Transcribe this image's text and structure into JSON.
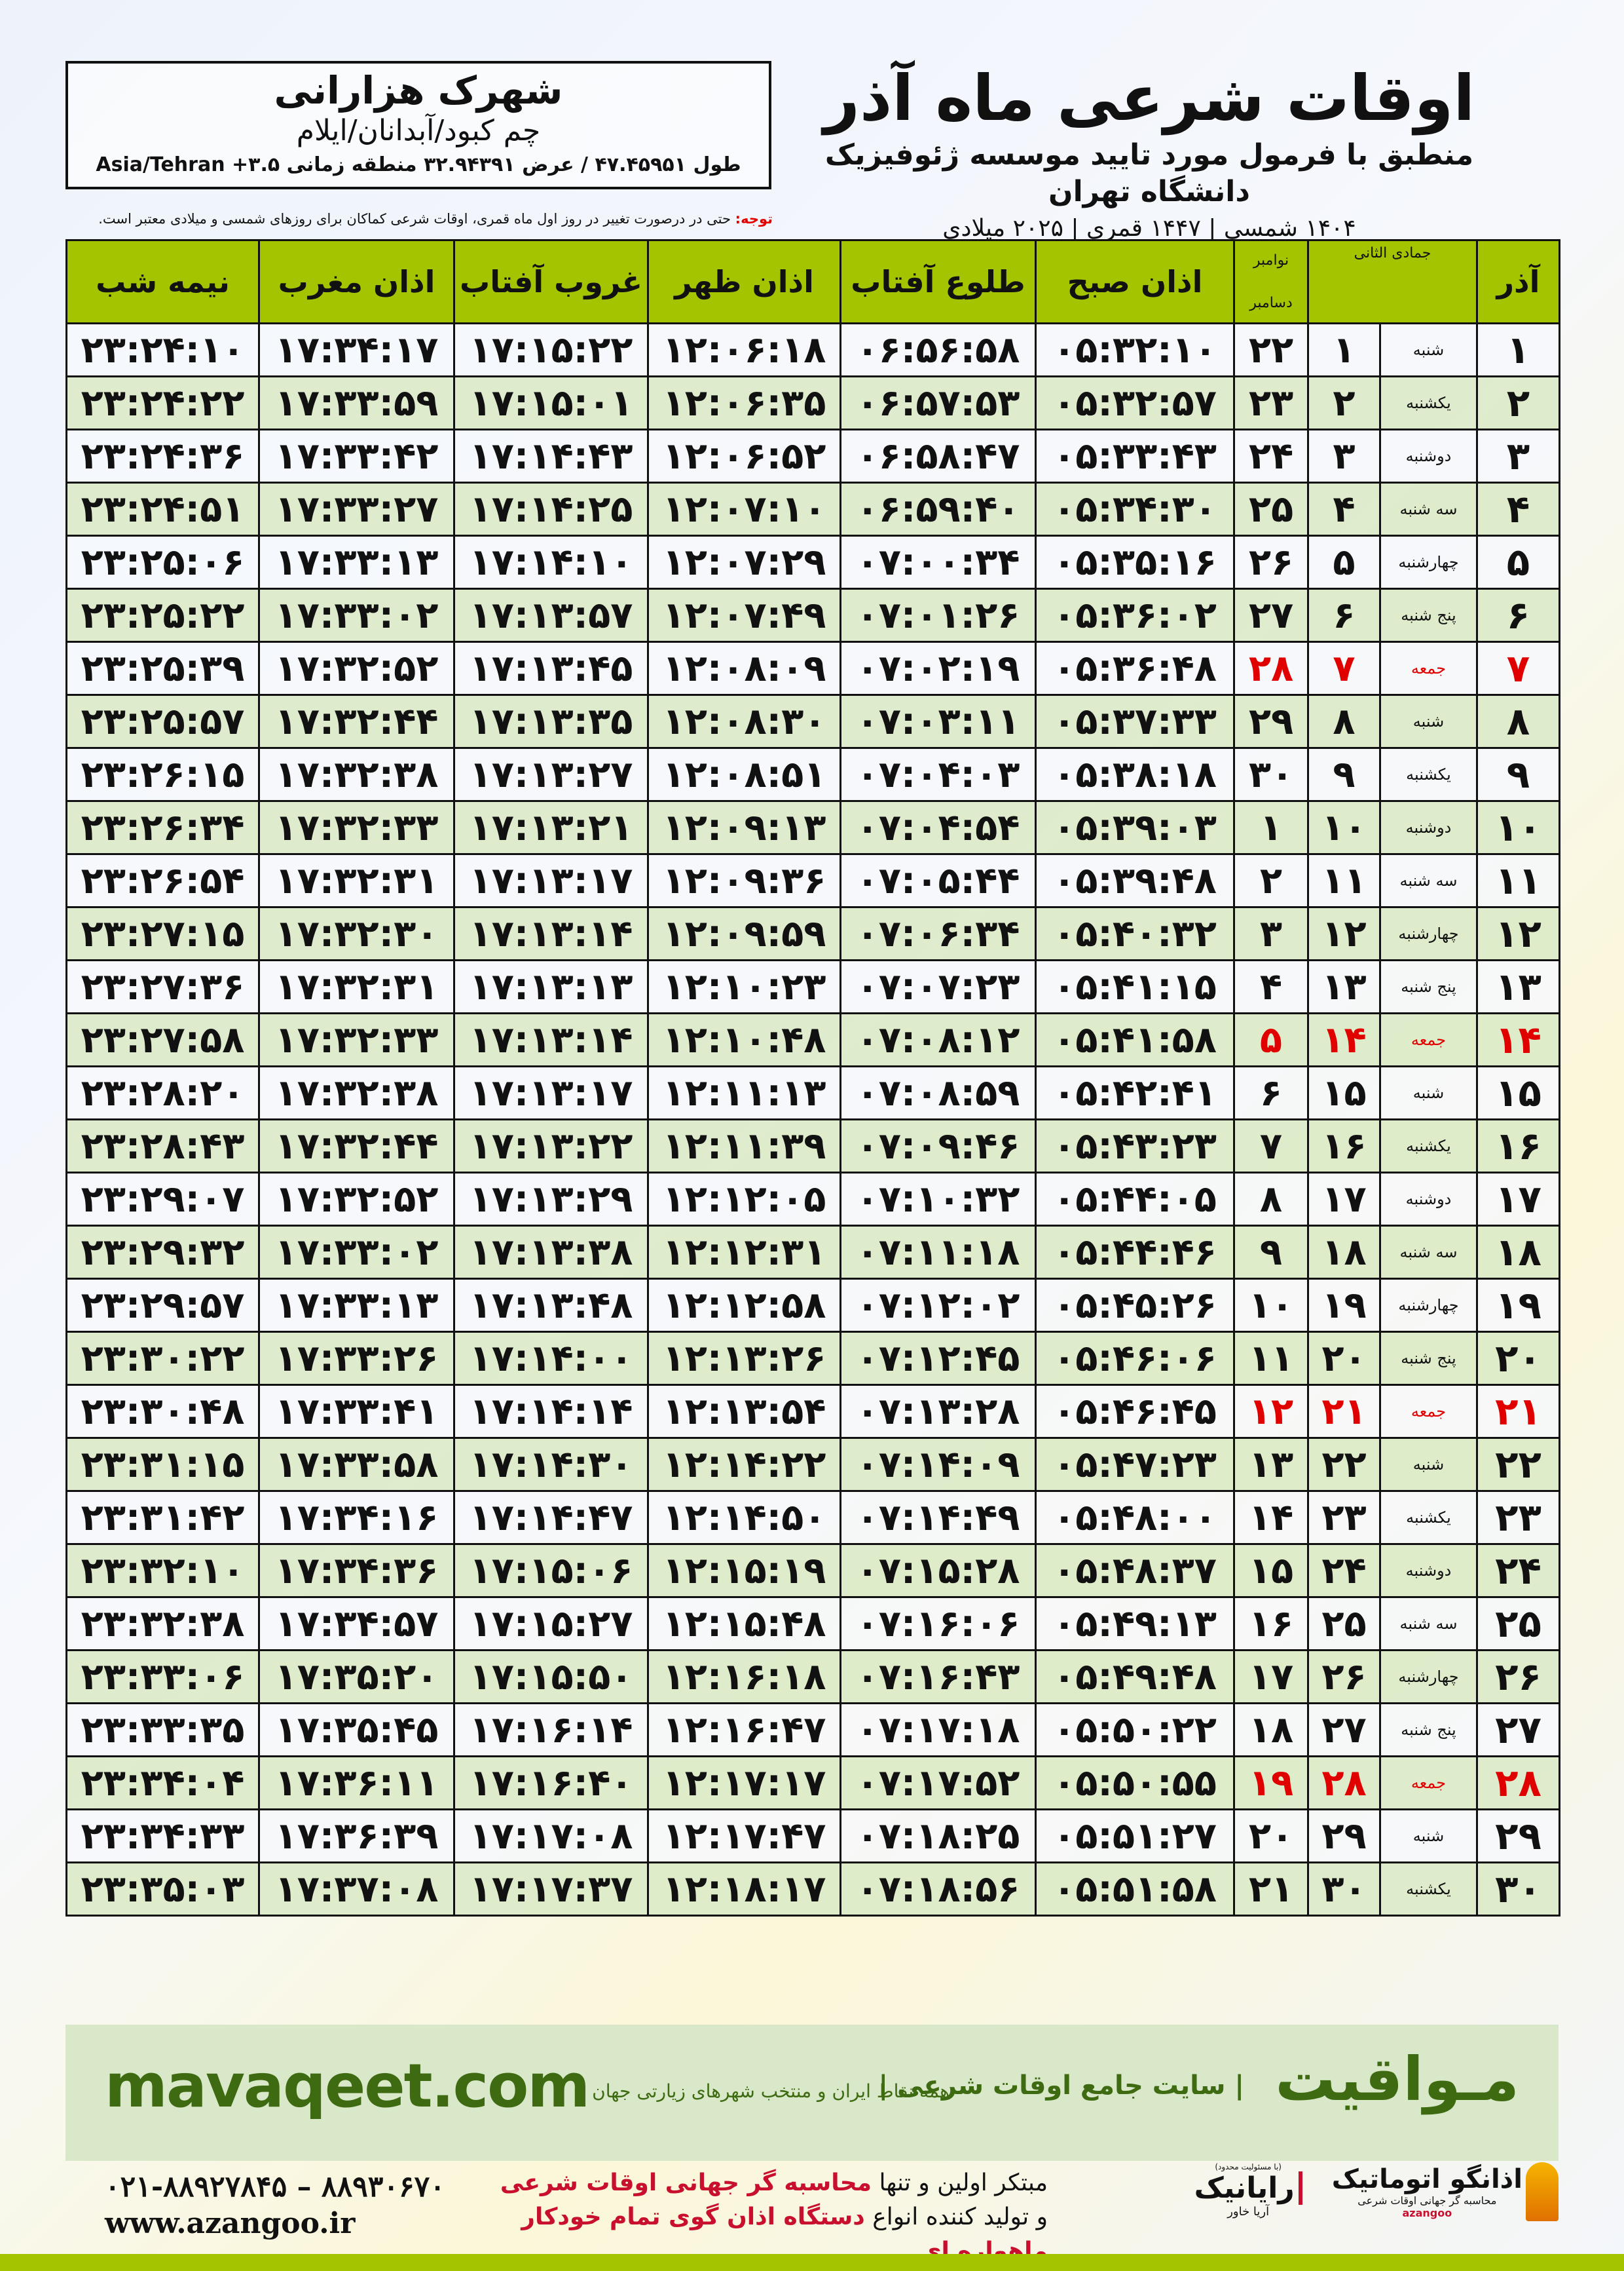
{
  "location": {
    "city": "شهرک هزارانی",
    "region": "چم کبود/آبدانان/ایلام",
    "coords": "طول ۴۷.۴۵۹۵۱ / عرض ۳۲.۹۴۳۹۱ منطقه زمانی ۳.۵+ Asia/Tehran"
  },
  "title": {
    "main": "اوقات شرعی ماه آذر",
    "subtitle": "منطبق با فرمول مورد تایید موسسه ژئوفیزیک دانشگاه تهران",
    "years": "۱۴۰۴ شمسی | ۱۴۴۷ قمری | ۲۰۲۵ میلادی"
  },
  "note": {
    "label": "توجه:",
    "text": " حتی در درصورت تغییر در روز اول ماه قمری، اوقات شرعی کماکان برای روزهای شمسی و میلادی معتبر است."
  },
  "table": {
    "headers": {
      "azar": "آذر",
      "qamari": "جمادی الثانی",
      "miladi_top": "نوامبر",
      "miladi_bottom": "دسامبر",
      "sobh": "اذان صبح",
      "tolu": "طلوع آفتاب",
      "zohr": "اذان ظهر",
      "ghorub": "غروب آفتاب",
      "maghreb": "اذان مغرب",
      "nimeshab": "نیمه شب"
    },
    "colors": {
      "header": "#a5c400",
      "friday": "#e00000",
      "row_alt": "#dbeac8"
    },
    "rows": [
      [
        "۱",
        "شنبه",
        "۱",
        "۲۲",
        "۰۵:۳۲:۱۰",
        "۰۶:۵۶:۵۸",
        "۱۲:۰۶:۱۸",
        "۱۷:۱۵:۲۲",
        "۱۷:۳۴:۱۷",
        "۲۳:۲۴:۱۰"
      ],
      [
        "۲",
        "یکشنبه",
        "۲",
        "۲۳",
        "۰۵:۳۲:۵۷",
        "۰۶:۵۷:۵۳",
        "۱۲:۰۶:۳۵",
        "۱۷:۱۵:۰۱",
        "۱۷:۳۳:۵۹",
        "۲۳:۲۴:۲۲"
      ],
      [
        "۳",
        "دوشنبه",
        "۳",
        "۲۴",
        "۰۵:۳۳:۴۳",
        "۰۶:۵۸:۴۷",
        "۱۲:۰۶:۵۲",
        "۱۷:۱۴:۴۳",
        "۱۷:۳۳:۴۲",
        "۲۳:۲۴:۳۶"
      ],
      [
        "۴",
        "سه شنبه",
        "۴",
        "۲۵",
        "۰۵:۳۴:۳۰",
        "۰۶:۵۹:۴۰",
        "۱۲:۰۷:۱۰",
        "۱۷:۱۴:۲۵",
        "۱۷:۳۳:۲۷",
        "۲۳:۲۴:۵۱"
      ],
      [
        "۵",
        "چهارشنبه",
        "۵",
        "۲۶",
        "۰۵:۳۵:۱۶",
        "۰۷:۰۰:۳۴",
        "۱۲:۰۷:۲۹",
        "۱۷:۱۴:۱۰",
        "۱۷:۳۳:۱۳",
        "۲۳:۲۵:۰۶"
      ],
      [
        "۶",
        "پنج شنبه",
        "۶",
        "۲۷",
        "۰۵:۳۶:۰۲",
        "۰۷:۰۱:۲۶",
        "۱۲:۰۷:۴۹",
        "۱۷:۱۳:۵۷",
        "۱۷:۳۳:۰۲",
        "۲۳:۲۵:۲۲"
      ],
      [
        "۷",
        "جمعه",
        "۷",
        "۲۸",
        "۰۵:۳۶:۴۸",
        "۰۷:۰۲:۱۹",
        "۱۲:۰۸:۰۹",
        "۱۷:۱۳:۴۵",
        "۱۷:۳۲:۵۲",
        "۲۳:۲۵:۳۹"
      ],
      [
        "۸",
        "شنبه",
        "۸",
        "۲۹",
        "۰۵:۳۷:۳۳",
        "۰۷:۰۳:۱۱",
        "۱۲:۰۸:۳۰",
        "۱۷:۱۳:۳۵",
        "۱۷:۳۲:۴۴",
        "۲۳:۲۵:۵۷"
      ],
      [
        "۹",
        "یکشنبه",
        "۹",
        "۳۰",
        "۰۵:۳۸:۱۸",
        "۰۷:۰۴:۰۳",
        "۱۲:۰۸:۵۱",
        "۱۷:۱۳:۲۷",
        "۱۷:۳۲:۳۸",
        "۲۳:۲۶:۱۵"
      ],
      [
        "۱۰",
        "دوشنبه",
        "۱۰",
        "۱",
        "۰۵:۳۹:۰۳",
        "۰۷:۰۴:۵۴",
        "۱۲:۰۹:۱۳",
        "۱۷:۱۳:۲۱",
        "۱۷:۳۲:۳۳",
        "۲۳:۲۶:۳۴"
      ],
      [
        "۱۱",
        "سه شنبه",
        "۱۱",
        "۲",
        "۰۵:۳۹:۴۸",
        "۰۷:۰۵:۴۴",
        "۱۲:۰۹:۳۶",
        "۱۷:۱۳:۱۷",
        "۱۷:۳۲:۳۱",
        "۲۳:۲۶:۵۴"
      ],
      [
        "۱۲",
        "چهارشنبه",
        "۱۲",
        "۳",
        "۰۵:۴۰:۳۲",
        "۰۷:۰۶:۳۴",
        "۱۲:۰۹:۵۹",
        "۱۷:۱۳:۱۴",
        "۱۷:۳۲:۳۰",
        "۲۳:۲۷:۱۵"
      ],
      [
        "۱۳",
        "پنج شنبه",
        "۱۳",
        "۴",
        "۰۵:۴۱:۱۵",
        "۰۷:۰۷:۲۳",
        "۱۲:۱۰:۲۳",
        "۱۷:۱۳:۱۳",
        "۱۷:۳۲:۳۱",
        "۲۳:۲۷:۳۶"
      ],
      [
        "۱۴",
        "جمعه",
        "۱۴",
        "۵",
        "۰۵:۴۱:۵۸",
        "۰۷:۰۸:۱۲",
        "۱۲:۱۰:۴۸",
        "۱۷:۱۳:۱۴",
        "۱۷:۳۲:۳۳",
        "۲۳:۲۷:۵۸"
      ],
      [
        "۱۵",
        "شنبه",
        "۱۵",
        "۶",
        "۰۵:۴۲:۴۱",
        "۰۷:۰۸:۵۹",
        "۱۲:۱۱:۱۳",
        "۱۷:۱۳:۱۷",
        "۱۷:۳۲:۳۸",
        "۲۳:۲۸:۲۰"
      ],
      [
        "۱۶",
        "یکشنبه",
        "۱۶",
        "۷",
        "۰۵:۴۳:۲۳",
        "۰۷:۰۹:۴۶",
        "۱۲:۱۱:۳۹",
        "۱۷:۱۳:۲۲",
        "۱۷:۳۲:۴۴",
        "۲۳:۲۸:۴۳"
      ],
      [
        "۱۷",
        "دوشنبه",
        "۱۷",
        "۸",
        "۰۵:۴۴:۰۵",
        "۰۷:۱۰:۳۲",
        "۱۲:۱۲:۰۵",
        "۱۷:۱۳:۲۹",
        "۱۷:۳۲:۵۲",
        "۲۳:۲۹:۰۷"
      ],
      [
        "۱۸",
        "سه شنبه",
        "۱۸",
        "۹",
        "۰۵:۴۴:۴۶",
        "۰۷:۱۱:۱۸",
        "۱۲:۱۲:۳۱",
        "۱۷:۱۳:۳۸",
        "۱۷:۳۳:۰۲",
        "۲۳:۲۹:۳۲"
      ],
      [
        "۱۹",
        "چهارشنبه",
        "۱۹",
        "۱۰",
        "۰۵:۴۵:۲۶",
        "۰۷:۱۲:۰۲",
        "۱۲:۱۲:۵۸",
        "۱۷:۱۳:۴۸",
        "۱۷:۳۳:۱۳",
        "۲۳:۲۹:۵۷"
      ],
      [
        "۲۰",
        "پنج شنبه",
        "۲۰",
        "۱۱",
        "۰۵:۴۶:۰۶",
        "۰۷:۱۲:۴۵",
        "۱۲:۱۳:۲۶",
        "۱۷:۱۴:۰۰",
        "۱۷:۳۳:۲۶",
        "۲۳:۳۰:۲۲"
      ],
      [
        "۲۱",
        "جمعه",
        "۲۱",
        "۱۲",
        "۰۵:۴۶:۴۵",
        "۰۷:۱۳:۲۸",
        "۱۲:۱۳:۵۴",
        "۱۷:۱۴:۱۴",
        "۱۷:۳۳:۴۱",
        "۲۳:۳۰:۴۸"
      ],
      [
        "۲۲",
        "شنبه",
        "۲۲",
        "۱۳",
        "۰۵:۴۷:۲۳",
        "۰۷:۱۴:۰۹",
        "۱۲:۱۴:۲۲",
        "۱۷:۱۴:۳۰",
        "۱۷:۳۳:۵۸",
        "۲۳:۳۱:۱۵"
      ],
      [
        "۲۳",
        "یکشنبه",
        "۲۳",
        "۱۴",
        "۰۵:۴۸:۰۰",
        "۰۷:۱۴:۴۹",
        "۱۲:۱۴:۵۰",
        "۱۷:۱۴:۴۷",
        "۱۷:۳۴:۱۶",
        "۲۳:۳۱:۴۲"
      ],
      [
        "۲۴",
        "دوشنبه",
        "۲۴",
        "۱۵",
        "۰۵:۴۸:۳۷",
        "۰۷:۱۵:۲۸",
        "۱۲:۱۵:۱۹",
        "۱۷:۱۵:۰۶",
        "۱۷:۳۴:۳۶",
        "۲۳:۳۲:۱۰"
      ],
      [
        "۲۵",
        "سه شنبه",
        "۲۵",
        "۱۶",
        "۰۵:۴۹:۱۳",
        "۰۷:۱۶:۰۶",
        "۱۲:۱۵:۴۸",
        "۱۷:۱۵:۲۷",
        "۱۷:۳۴:۵۷",
        "۲۳:۳۲:۳۸"
      ],
      [
        "۲۶",
        "چهارشنبه",
        "۲۶",
        "۱۷",
        "۰۵:۴۹:۴۸",
        "۰۷:۱۶:۴۳",
        "۱۲:۱۶:۱۸",
        "۱۷:۱۵:۵۰",
        "۱۷:۳۵:۲۰",
        "۲۳:۳۳:۰۶"
      ],
      [
        "۲۷",
        "پنج شنبه",
        "۲۷",
        "۱۸",
        "۰۵:۵۰:۲۲",
        "۰۷:۱۷:۱۸",
        "۱۲:۱۶:۴۷",
        "۱۷:۱۶:۱۴",
        "۱۷:۳۵:۴۵",
        "۲۳:۳۳:۳۵"
      ],
      [
        "۲۸",
        "جمعه",
        "۲۸",
        "۱۹",
        "۰۵:۵۰:۵۵",
        "۰۷:۱۷:۵۲",
        "۱۲:۱۷:۱۷",
        "۱۷:۱۶:۴۰",
        "۱۷:۳۶:۱۱",
        "۲۳:۳۴:۰۴"
      ],
      [
        "۲۹",
        "شنبه",
        "۲۹",
        "۲۰",
        "۰۵:۵۱:۲۷",
        "۰۷:۱۸:۲۵",
        "۱۲:۱۷:۴۷",
        "۱۷:۱۷:۰۸",
        "۱۷:۳۶:۳۹",
        "۲۳:۳۴:۳۳"
      ],
      [
        "۳۰",
        "یکشنبه",
        "۳۰",
        "۲۱",
        "۰۵:۵۱:۵۸",
        "۰۷:۱۸:۵۶",
        "۱۲:۱۸:۱۷",
        "۱۷:۱۷:۳۷",
        "۱۷:۳۷:۰۸",
        "۲۳:۳۵:۰۳"
      ]
    ]
  },
  "footer": {
    "site": "mavaqeet.com",
    "brand": "مـواقیت",
    "slogan": "| سایت جامع اوقات شرعی |",
    "slogan2": "همه نقاط ایران و منتخب شهرهای زیارتی جهان",
    "phone": "۰۲۱-۸۸۹۲۷۸۴۵ – ۸۸۹۳۰۶۷۰",
    "web": "www.azangoo.ir",
    "maker_1a": "مبتکر اولین و تنها ",
    "maker_1b": "محاسبه گر جهانی اوقات شرعی",
    "maker_2a": "و تولید کننده انواع ",
    "maker_2b": "دستگاه اذان گوی تمام خودکار ماهواره ای",
    "logo1_name": "اذانگو اتوماتیک",
    "logo1_sub": "محاسبه گر جهانی اوقات شرعی",
    "logo1_en": "azangoo",
    "logo2_name": "رایانیک",
    "logo2_sub": "آریا خاور",
    "logo2_note": "(با مسئولیت محدود)",
    "colors": {
      "band": "#d9e8c8",
      "text": "#3e6b12",
      "accent": "#c8102e"
    }
  }
}
